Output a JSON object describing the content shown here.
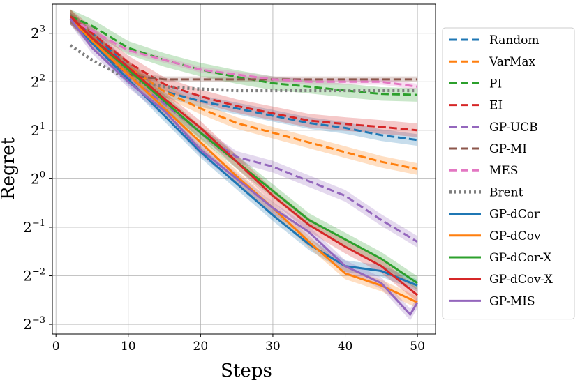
{
  "chart_data": {
    "type": "line",
    "title": "",
    "xlabel": "Steps",
    "ylabel": "Regret",
    "xlim": [
      -0.5,
      52.5
    ],
    "ylim_log2": [
      -3.2,
      3.6
    ],
    "y_scale": "log2",
    "grid": true,
    "legend_position": "right outside",
    "x_ticks": [
      0,
      10,
      20,
      30,
      40,
      50
    ],
    "y_ticks": [
      {
        "exp": -3,
        "base": "2",
        "sup": "−3"
      },
      {
        "exp": -2,
        "base": "2",
        "sup": "−2"
      },
      {
        "exp": -1,
        "base": "2",
        "sup": "−1"
      },
      {
        "exp": 0,
        "base": "2",
        "sup": "0"
      },
      {
        "exp": 1,
        "base": "2",
        "sup": "1"
      },
      {
        "exp": 2,
        "base": "2",
        "sup": "2"
      },
      {
        "exp": 3,
        "base": "2",
        "sup": "3"
      }
    ],
    "series": [
      {
        "name": "Random",
        "color": "#1f77b4",
        "style": "dashed",
        "band": 0.12,
        "points": [
          [
            2,
            3.3
          ],
          [
            5,
            3.0
          ],
          [
            10,
            2.3
          ],
          [
            15,
            1.8
          ],
          [
            20,
            1.6
          ],
          [
            25,
            1.45
          ],
          [
            30,
            1.3
          ],
          [
            35,
            1.15
          ],
          [
            40,
            1.05
          ],
          [
            45,
            0.9
          ],
          [
            50,
            0.8
          ]
        ]
      },
      {
        "name": "VarMax",
        "color": "#ff7f0e",
        "style": "dashed",
        "band": 0.12,
        "points": [
          [
            2,
            3.3
          ],
          [
            5,
            2.9
          ],
          [
            10,
            2.3
          ],
          [
            15,
            1.8
          ],
          [
            20,
            1.45
          ],
          [
            25,
            1.15
          ],
          [
            30,
            0.95
          ],
          [
            35,
            0.75
          ],
          [
            40,
            0.55
          ],
          [
            45,
            0.35
          ],
          [
            50,
            0.2
          ]
        ]
      },
      {
        "name": "PI",
        "color": "#2ca02c",
        "style": "dashed",
        "band": 0.14,
        "points": [
          [
            2,
            3.35
          ],
          [
            5,
            3.15
          ],
          [
            10,
            2.7
          ],
          [
            15,
            2.45
          ],
          [
            20,
            2.25
          ],
          [
            25,
            2.1
          ],
          [
            30,
            1.97
          ],
          [
            35,
            1.9
          ],
          [
            40,
            1.82
          ],
          [
            45,
            1.75
          ],
          [
            50,
            1.73
          ]
        ]
      },
      {
        "name": "EI",
        "color": "#d62728",
        "style": "dashed",
        "band": 0.14,
        "points": [
          [
            2,
            3.35
          ],
          [
            5,
            3.0
          ],
          [
            10,
            2.4
          ],
          [
            15,
            1.95
          ],
          [
            20,
            1.7
          ],
          [
            25,
            1.5
          ],
          [
            30,
            1.35
          ],
          [
            35,
            1.2
          ],
          [
            40,
            1.13
          ],
          [
            45,
            1.07
          ],
          [
            50,
            1.0
          ]
        ]
      },
      {
        "name": "GP-UCB",
        "color": "#9467bd",
        "style": "dashed",
        "band": 0.12,
        "points": [
          [
            2,
            3.3
          ],
          [
            5,
            2.9
          ],
          [
            10,
            2.1
          ],
          [
            15,
            1.55
          ],
          [
            20,
            0.95
          ],
          [
            25,
            0.45
          ],
          [
            30,
            0.25
          ],
          [
            35,
            -0.05
          ],
          [
            40,
            -0.35
          ],
          [
            45,
            -0.85
          ],
          [
            50,
            -1.3
          ]
        ]
      },
      {
        "name": "GP-MI",
        "color": "#8c564b",
        "style": "dashed",
        "band": 0.06,
        "points": [
          [
            2,
            3.3
          ],
          [
            5,
            2.9
          ],
          [
            8,
            2.4
          ],
          [
            10,
            2.15
          ],
          [
            12,
            2.1
          ],
          [
            15,
            2.05
          ],
          [
            20,
            2.05
          ],
          [
            25,
            2.05
          ],
          [
            30,
            2.05
          ],
          [
            35,
            2.05
          ],
          [
            40,
            2.05
          ],
          [
            45,
            2.05
          ],
          [
            50,
            2.05
          ]
        ]
      },
      {
        "name": "MES",
        "color": "#e377c2",
        "style": "dashed",
        "band": 0.06,
        "points": [
          [
            2,
            3.3
          ],
          [
            5,
            3.05
          ],
          [
            10,
            2.65
          ],
          [
            15,
            2.45
          ],
          [
            20,
            2.25
          ],
          [
            25,
            2.15
          ],
          [
            30,
            2.05
          ],
          [
            35,
            2.0
          ],
          [
            40,
            2.0
          ],
          [
            45,
            2.0
          ],
          [
            50,
            1.9
          ]
        ]
      },
      {
        "name": "Brent",
        "color": "#7f7f7f",
        "style": "dotted",
        "band": 0,
        "points": [
          [
            2,
            2.75
          ],
          [
            5,
            2.45
          ],
          [
            10,
            2.05
          ],
          [
            13,
            1.95
          ],
          [
            15,
            1.9
          ],
          [
            20,
            1.85
          ],
          [
            25,
            1.82
          ],
          [
            30,
            1.82
          ],
          [
            35,
            1.82
          ],
          [
            40,
            1.82
          ],
          [
            45,
            1.82
          ],
          [
            50,
            1.82
          ]
        ]
      },
      {
        "name": "GP-dCor",
        "color": "#1f77b4",
        "style": "solid",
        "band": 0.12,
        "points": [
          [
            2,
            3.3
          ],
          [
            5,
            2.8
          ],
          [
            10,
            2.05
          ],
          [
            15,
            1.3
          ],
          [
            20,
            0.55
          ],
          [
            25,
            -0.1
          ],
          [
            30,
            -0.75
          ],
          [
            35,
            -1.35
          ],
          [
            40,
            -1.8
          ],
          [
            45,
            -1.9
          ],
          [
            50,
            -2.2
          ]
        ]
      },
      {
        "name": "GP-dCov",
        "color": "#ff7f0e",
        "style": "solid",
        "band": 0.12,
        "points": [
          [
            2,
            3.3
          ],
          [
            5,
            2.85
          ],
          [
            10,
            2.15
          ],
          [
            15,
            1.45
          ],
          [
            20,
            0.75
          ],
          [
            25,
            0.05
          ],
          [
            30,
            -0.6
          ],
          [
            35,
            -1.3
          ],
          [
            40,
            -1.95
          ],
          [
            45,
            -2.2
          ],
          [
            50,
            -2.55
          ]
        ]
      },
      {
        "name": "GP-dCor-X",
        "color": "#2ca02c",
        "style": "solid",
        "band": 0.14,
        "points": [
          [
            2,
            3.35
          ],
          [
            5,
            2.9
          ],
          [
            10,
            2.25
          ],
          [
            15,
            1.6
          ],
          [
            20,
            0.95
          ],
          [
            25,
            0.35
          ],
          [
            30,
            -0.25
          ],
          [
            35,
            -0.85
          ],
          [
            40,
            -1.25
          ],
          [
            45,
            -1.65
          ],
          [
            50,
            -2.15
          ]
        ]
      },
      {
        "name": "GP-dCov-X",
        "color": "#d62728",
        "style": "solid",
        "band": 0.14,
        "points": [
          [
            2,
            3.35
          ],
          [
            5,
            2.9
          ],
          [
            10,
            2.3
          ],
          [
            15,
            1.65
          ],
          [
            20,
            1.05
          ],
          [
            25,
            0.35
          ],
          [
            30,
            -0.35
          ],
          [
            35,
            -0.95
          ],
          [
            40,
            -1.4
          ],
          [
            45,
            -1.8
          ],
          [
            50,
            -2.4
          ]
        ]
      },
      {
        "name": "GP-MIS",
        "color": "#9467bd",
        "style": "solid",
        "band": 0.12,
        "points": [
          [
            2,
            3.3
          ],
          [
            5,
            2.7
          ],
          [
            10,
            2.0
          ],
          [
            15,
            1.4
          ],
          [
            20,
            0.6
          ],
          [
            25,
            0.0
          ],
          [
            30,
            -0.6
          ],
          [
            35,
            -1.1
          ],
          [
            40,
            -1.8
          ],
          [
            45,
            -2.15
          ],
          [
            49,
            -2.8
          ],
          [
            50,
            -2.55
          ]
        ]
      }
    ]
  }
}
